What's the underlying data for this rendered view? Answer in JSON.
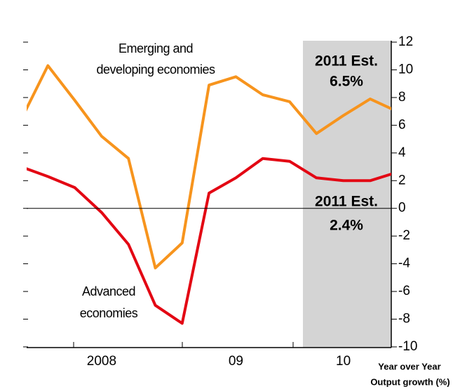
{
  "chart_data": {
    "type": "line",
    "categories": [
      null,
      null,
      null,
      "2008",
      null,
      null,
      null,
      null,
      "09",
      null,
      null,
      null,
      "10",
      null,
      null
    ],
    "series": [
      {
        "name": "Emerging and developing economies",
        "color": "#f7941d",
        "values": [
          6.4,
          10.3,
          7.8,
          5.2,
          3.6,
          -4.3,
          -2.5,
          8.9,
          9.5,
          8.2,
          7.7,
          5.4,
          6.7,
          7.9,
          7.0
        ]
      },
      {
        "name": "Advanced economies",
        "color": "#e30613",
        "values": [
          3.0,
          2.3,
          1.5,
          -0.3,
          -2.6,
          -7.0,
          -8.3,
          1.1,
          2.2,
          3.6,
          3.4,
          2.2,
          2.0,
          2.0,
          2.6
        ]
      }
    ],
    "ylim": [
      -10,
      12
    ],
    "yticks": [
      -10,
      -8,
      -6,
      -4,
      -2,
      0,
      2,
      4,
      6,
      8,
      10,
      12
    ],
    "axis_label": [
      "Year over Year",
      "Output growth (%)"
    ],
    "annotations": [
      "2011 Est.",
      "6.5%",
      "2011 Est.",
      "2.4%"
    ]
  }
}
